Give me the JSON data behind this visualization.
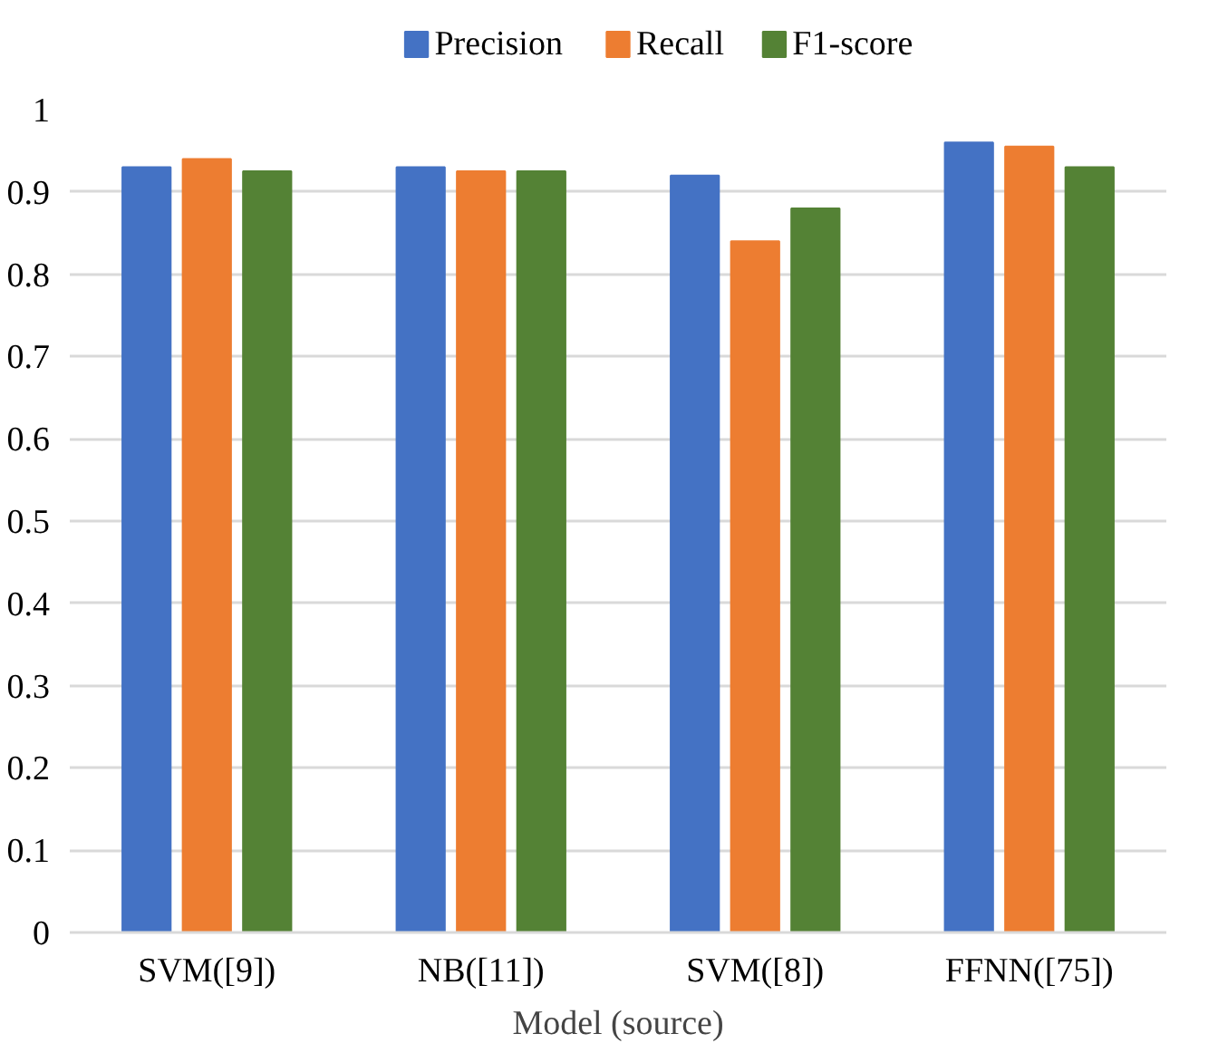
{
  "chart_data": {
    "type": "bar",
    "xlabel": "Model (source)",
    "categories": [
      "SVM([9])",
      "NB([11])",
      "SVM([8])",
      "FFNN([75])"
    ],
    "series": [
      {
        "name": "Precision",
        "color": "#4472c4",
        "values": [
          0.93,
          0.93,
          0.92,
          0.96
        ]
      },
      {
        "name": "Recall",
        "color": "#ed7d31",
        "values": [
          0.94,
          0.925,
          0.84,
          0.955
        ]
      },
      {
        "name": "F1-score",
        "color": "#548235",
        "values": [
          0.925,
          0.925,
          0.88,
          0.93
        ]
      }
    ],
    "ylim": [
      0,
      1
    ],
    "yticks": [
      {
        "value": 0,
        "label": "0"
      },
      0.1,
      0.2,
      0.3,
      0.4,
      0.5,
      0.6,
      0.7,
      0.8,
      0.9,
      {
        "value": 1,
        "label": "1"
      }
    ],
    "grid": "y",
    "legend": "top"
  }
}
